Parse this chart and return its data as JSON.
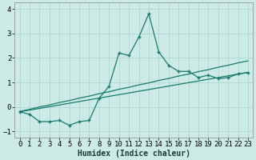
{
  "xlabel": "Humidex (Indice chaleur)",
  "ylabel": "",
  "background_color": "#cceae6",
  "grid_color": "#aad4ce",
  "line_color": "#1a7a6e",
  "x_data": [
    0,
    1,
    2,
    3,
    4,
    5,
    6,
    7,
    8,
    9,
    10,
    11,
    12,
    13,
    14,
    15,
    16,
    17,
    18,
    19,
    20,
    21,
    22,
    23
  ],
  "y_main": [
    -0.2,
    -0.3,
    -0.6,
    -0.6,
    -0.55,
    -0.75,
    -0.6,
    -0.55,
    0.35,
    0.85,
    2.2,
    2.1,
    2.85,
    3.8,
    2.25,
    1.7,
    1.45,
    1.45,
    1.2,
    1.3,
    1.15,
    1.2,
    1.35,
    1.4
  ],
  "y_line1": [
    -0.2,
    -0.13,
    -0.06,
    0.01,
    0.08,
    0.15,
    0.22,
    0.29,
    0.36,
    0.43,
    0.5,
    0.57,
    0.64,
    0.71,
    0.78,
    0.85,
    0.92,
    0.99,
    1.06,
    1.13,
    1.2,
    1.27,
    1.34,
    1.41
  ],
  "y_line2": [
    -0.18,
    -0.1,
    0.0,
    0.08,
    0.18,
    0.26,
    0.36,
    0.44,
    0.54,
    0.62,
    0.72,
    0.8,
    0.9,
    0.98,
    1.08,
    1.16,
    1.26,
    1.34,
    1.44,
    1.52,
    1.62,
    1.7,
    1.8,
    1.88
  ],
  "ylim": [
    -1.25,
    4.25
  ],
  "xlim": [
    -0.5,
    23.5
  ],
  "yticks": [
    -1,
    0,
    1,
    2,
    3,
    4
  ],
  "xticks": [
    0,
    1,
    2,
    3,
    4,
    5,
    6,
    7,
    8,
    9,
    10,
    11,
    12,
    13,
    14,
    15,
    16,
    17,
    18,
    19,
    20,
    21,
    22,
    23
  ],
  "xlabel_fontsize": 7,
  "tick_fontsize": 6.5
}
